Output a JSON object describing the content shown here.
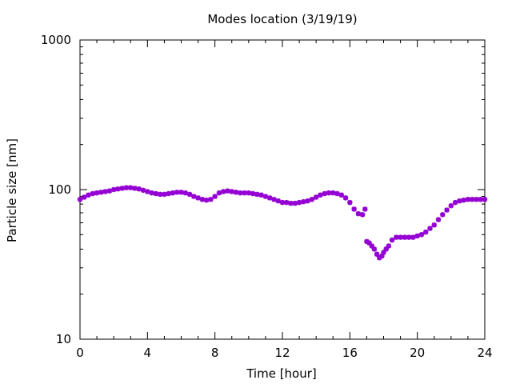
{
  "chart_data": {
    "type": "scatter",
    "title": "Modes location (3/19/19)",
    "xlabel": "Time [hour]",
    "ylabel": "Particle size [nm]",
    "xlim": [
      0,
      24
    ],
    "ylim": [
      10,
      1000
    ],
    "yscale": "log",
    "x_ticks": [
      0,
      4,
      8,
      12,
      16,
      20,
      24
    ],
    "x_tick_labels": [
      "0",
      "4",
      "8",
      "12",
      "16",
      "20",
      "24"
    ],
    "y_ticks": [
      10,
      100,
      1000
    ],
    "y_tick_labels": [
      "10",
      "100",
      "1000"
    ],
    "grid": false,
    "legend": "none",
    "marker_color": "#9400d3",
    "series": [
      {
        "x": [
          0.0,
          0.25,
          0.5,
          0.75,
          1.0,
          1.25,
          1.5,
          1.75,
          2.0,
          2.25,
          2.5,
          2.75,
          3.0,
          3.25,
          3.5,
          3.75,
          4.0,
          4.25,
          4.5,
          4.75,
          5.0,
          5.25,
          5.5,
          5.75,
          6.0,
          6.25,
          6.5,
          6.75,
          7.0,
          7.25,
          7.5,
          7.75,
          8.0,
          8.25,
          8.5,
          8.75,
          9.0,
          9.25,
          9.5,
          9.75,
          10.0,
          10.25,
          10.5,
          10.75,
          11.0,
          11.25,
          11.5,
          11.75,
          12.0,
          12.25,
          12.5,
          12.75,
          13.0,
          13.25,
          13.5,
          13.75,
          14.0,
          14.25,
          14.5,
          14.75,
          15.0,
          15.25,
          15.5,
          15.75,
          16.0,
          16.25,
          16.5,
          16.75,
          16.9
        ],
        "y": [
          86,
          89,
          92,
          94,
          95,
          96,
          97,
          98,
          100,
          101,
          102,
          103,
          103,
          102,
          101,
          99,
          97,
          95,
          94,
          93,
          93,
          94,
          95,
          96,
          96,
          95,
          93,
          90,
          88,
          86,
          85,
          86,
          90,
          95,
          97,
          98,
          97,
          96,
          95,
          95,
          95,
          94,
          93,
          92,
          90,
          88,
          86,
          84,
          82,
          82,
          81,
          81,
          82,
          83,
          84,
          86,
          89,
          92,
          94,
          95,
          95,
          94,
          92,
          88,
          82,
          74,
          69,
          68,
          74
        ]
      },
      {
        "x": [
          17.0,
          17.15,
          17.3,
          17.45,
          17.6,
          17.75,
          17.9,
          18.0,
          18.15,
          18.3,
          18.5,
          18.75,
          19.0,
          19.25,
          19.5,
          19.75,
          20.0,
          20.25,
          20.5,
          20.75,
          21.0,
          21.25,
          21.5,
          21.75,
          22.0,
          22.25,
          22.5,
          22.75,
          23.0,
          23.25,
          23.5,
          23.75,
          24.0
        ],
        "y": [
          45,
          44,
          42,
          40,
          37,
          35,
          36,
          38,
          40,
          42,
          46,
          48,
          48,
          48,
          48,
          48,
          49,
          50,
          52,
          55,
          58,
          63,
          68,
          73,
          78,
          82,
          84,
          85,
          86,
          86,
          86,
          86,
          86
        ]
      }
    ]
  }
}
